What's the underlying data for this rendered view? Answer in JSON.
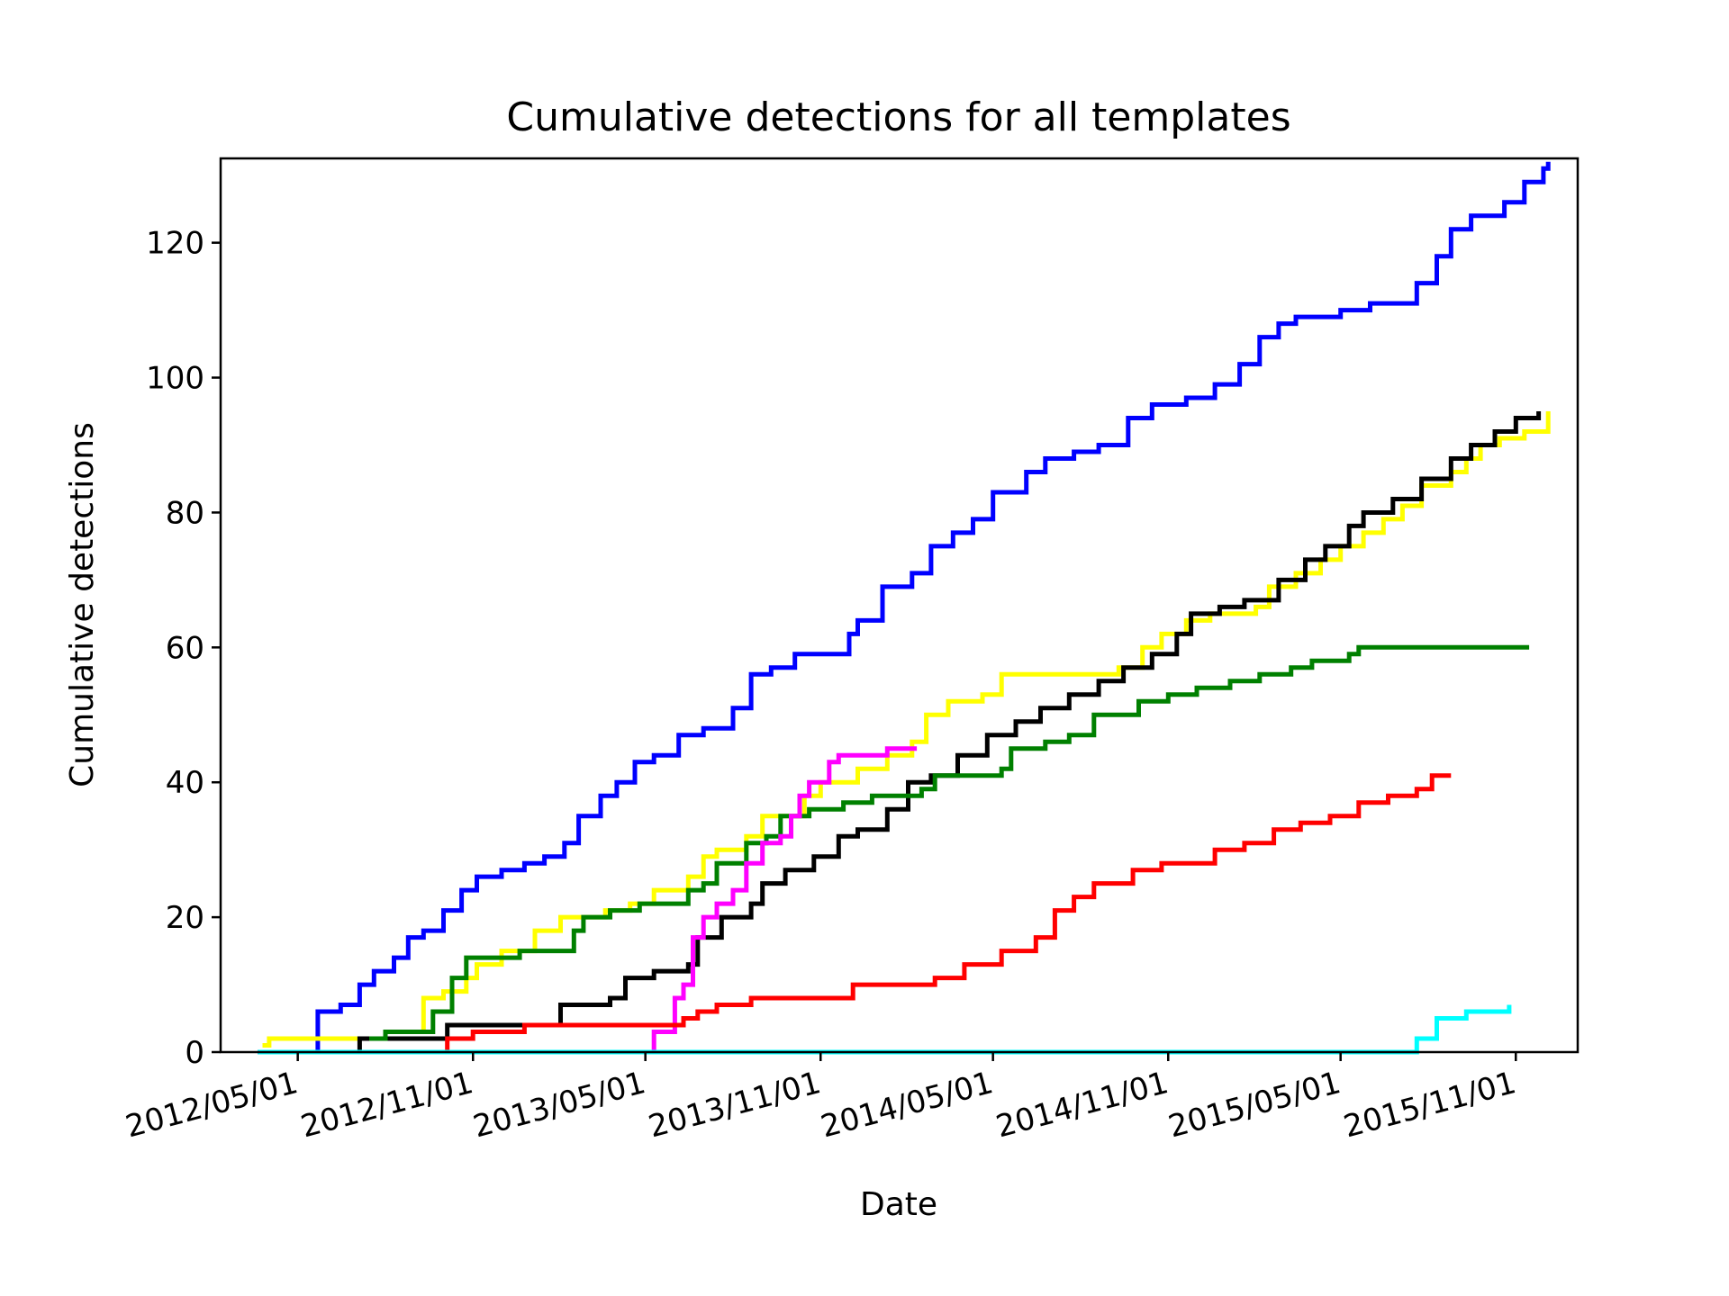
{
  "chart_data": {
    "type": "line",
    "title": "Cumulative detections for all templates",
    "xlabel": "Date",
    "ylabel": "Cumulative detections",
    "xlim": [
      "2012-02-10",
      "2016-01-05"
    ],
    "ylim": [
      0,
      132.5
    ],
    "x_ticks": [
      "2012/05/01",
      "2012/11/01",
      "2013/05/01",
      "2013/11/01",
      "2014/05/01",
      "2014/11/01",
      "2015/05/01",
      "2015/11/01"
    ],
    "y_ticks": [
      0,
      20,
      40,
      60,
      80,
      100,
      120
    ],
    "grid": false,
    "legend": "none",
    "series": [
      {
        "color": "#0000ff",
        "points": [
          [
            "2012-05-15",
            0
          ],
          [
            "2012-05-22",
            6
          ],
          [
            "2012-06-15",
            7
          ],
          [
            "2012-07-05",
            10
          ],
          [
            "2012-07-20",
            12
          ],
          [
            "2012-08-10",
            14
          ],
          [
            "2012-08-25",
            17
          ],
          [
            "2012-09-10",
            18
          ],
          [
            "2012-10-01",
            21
          ],
          [
            "2012-10-20",
            24
          ],
          [
            "2012-11-05",
            26
          ],
          [
            "2012-12-01",
            27
          ],
          [
            "2012-12-25",
            28
          ],
          [
            "2013-01-15",
            29
          ],
          [
            "2013-02-05",
            31
          ],
          [
            "2013-02-20",
            35
          ],
          [
            "2013-03-15",
            38
          ],
          [
            "2013-04-01",
            40
          ],
          [
            "2013-04-20",
            43
          ],
          [
            "2013-05-10",
            44
          ],
          [
            "2013-06-05",
            47
          ],
          [
            "2013-07-01",
            48
          ],
          [
            "2013-08-01",
            51
          ],
          [
            "2013-08-20",
            56
          ],
          [
            "2013-09-10",
            57
          ],
          [
            "2013-10-05",
            59
          ],
          [
            "2013-12-01",
            62
          ],
          [
            "2013-12-10",
            64
          ],
          [
            "2014-01-05",
            69
          ],
          [
            "2014-02-05",
            71
          ],
          [
            "2014-02-25",
            75
          ],
          [
            "2014-03-20",
            77
          ],
          [
            "2014-04-10",
            79
          ],
          [
            "2014-05-01",
            83
          ],
          [
            "2014-06-05",
            86
          ],
          [
            "2014-06-25",
            88
          ],
          [
            "2014-07-25",
            89
          ],
          [
            "2014-08-20",
            90
          ],
          [
            "2014-09-20",
            94
          ],
          [
            "2014-10-15",
            96
          ],
          [
            "2014-11-20",
            97
          ],
          [
            "2014-12-20",
            99
          ],
          [
            "2015-01-15",
            102
          ],
          [
            "2015-02-05",
            106
          ],
          [
            "2015-02-25",
            108
          ],
          [
            "2015-03-15",
            109
          ],
          [
            "2015-05-01",
            110
          ],
          [
            "2015-06-01",
            111
          ],
          [
            "2015-07-20",
            114
          ],
          [
            "2015-08-10",
            118
          ],
          [
            "2015-08-25",
            122
          ],
          [
            "2015-09-15",
            124
          ],
          [
            "2015-10-20",
            126
          ],
          [
            "2015-11-10",
            129
          ],
          [
            "2015-11-30",
            131
          ],
          [
            "2015-12-05",
            132
          ]
        ]
      },
      {
        "color": "#ffff00",
        "points": [
          [
            "2012-03-25",
            1
          ],
          [
            "2012-04-01",
            2
          ],
          [
            "2012-07-01",
            2
          ],
          [
            "2012-08-01",
            3
          ],
          [
            "2012-09-10",
            8
          ],
          [
            "2012-10-01",
            9
          ],
          [
            "2012-10-25",
            11
          ],
          [
            "2012-11-05",
            13
          ],
          [
            "2012-12-01",
            15
          ],
          [
            "2013-01-05",
            18
          ],
          [
            "2013-02-01",
            20
          ],
          [
            "2013-03-20",
            21
          ],
          [
            "2013-04-15",
            22
          ],
          [
            "2013-05-10",
            24
          ],
          [
            "2013-06-15",
            26
          ],
          [
            "2013-07-01",
            29
          ],
          [
            "2013-07-15",
            30
          ],
          [
            "2013-08-15",
            32
          ],
          [
            "2013-09-01",
            35
          ],
          [
            "2013-10-15",
            38
          ],
          [
            "2013-11-01",
            40
          ],
          [
            "2013-12-10",
            42
          ],
          [
            "2014-01-10",
            44
          ],
          [
            "2014-02-05",
            46
          ],
          [
            "2014-02-20",
            50
          ],
          [
            "2014-03-15",
            52
          ],
          [
            "2014-04-20",
            53
          ],
          [
            "2014-05-10",
            56
          ],
          [
            "2014-09-10",
            57
          ],
          [
            "2014-10-05",
            60
          ],
          [
            "2014-10-25",
            62
          ],
          [
            "2014-11-20",
            64
          ],
          [
            "2014-12-15",
            65
          ],
          [
            "2015-02-01",
            66
          ],
          [
            "2015-02-15",
            69
          ],
          [
            "2015-03-15",
            71
          ],
          [
            "2015-04-10",
            73
          ],
          [
            "2015-05-01",
            75
          ],
          [
            "2015-05-25",
            77
          ],
          [
            "2015-06-15",
            79
          ],
          [
            "2015-07-05",
            81
          ],
          [
            "2015-07-25",
            84
          ],
          [
            "2015-08-25",
            86
          ],
          [
            "2015-09-10",
            88
          ],
          [
            "2015-09-25",
            90
          ],
          [
            "2015-10-15",
            91
          ],
          [
            "2015-11-10",
            92
          ],
          [
            "2015-12-05",
            95
          ]
        ]
      },
      {
        "color": "#000000",
        "points": [
          [
            "2012-03-20",
            0
          ],
          [
            "2012-06-15",
            0
          ],
          [
            "2012-07-05",
            2
          ],
          [
            "2012-09-25",
            2
          ],
          [
            "2012-10-05",
            4
          ],
          [
            "2013-01-25",
            4
          ],
          [
            "2013-02-01",
            7
          ],
          [
            "2013-03-25",
            8
          ],
          [
            "2013-04-10",
            11
          ],
          [
            "2013-05-10",
            12
          ],
          [
            "2013-06-15",
            13
          ],
          [
            "2013-06-25",
            17
          ],
          [
            "2013-07-20",
            20
          ],
          [
            "2013-08-20",
            22
          ],
          [
            "2013-09-01",
            25
          ],
          [
            "2013-09-25",
            27
          ],
          [
            "2013-10-25",
            29
          ],
          [
            "2013-11-20",
            32
          ],
          [
            "2013-12-10",
            33
          ],
          [
            "2014-01-10",
            36
          ],
          [
            "2014-02-01",
            40
          ],
          [
            "2014-02-25",
            41
          ],
          [
            "2014-03-25",
            44
          ],
          [
            "2014-04-25",
            47
          ],
          [
            "2014-05-25",
            49
          ],
          [
            "2014-06-20",
            51
          ],
          [
            "2014-07-20",
            53
          ],
          [
            "2014-08-20",
            55
          ],
          [
            "2014-09-15",
            57
          ],
          [
            "2014-10-15",
            59
          ],
          [
            "2014-11-10",
            62
          ],
          [
            "2014-11-25",
            65
          ],
          [
            "2014-12-25",
            66
          ],
          [
            "2015-01-20",
            67
          ],
          [
            "2015-02-25",
            70
          ],
          [
            "2015-03-25",
            73
          ],
          [
            "2015-04-15",
            75
          ],
          [
            "2015-05-10",
            78
          ],
          [
            "2015-05-25",
            80
          ],
          [
            "2015-06-25",
            82
          ],
          [
            "2015-07-25",
            85
          ],
          [
            "2015-08-25",
            88
          ],
          [
            "2015-09-15",
            90
          ],
          [
            "2015-10-10",
            92
          ],
          [
            "2015-11-01",
            94
          ],
          [
            "2015-11-25",
            95
          ]
        ]
      },
      {
        "color": "#008000",
        "points": [
          [
            "2012-07-15",
            2
          ],
          [
            "2012-08-01",
            3
          ],
          [
            "2012-09-20",
            6
          ],
          [
            "2012-10-10",
            11
          ],
          [
            "2012-10-25",
            14
          ],
          [
            "2012-12-20",
            15
          ],
          [
            "2013-02-15",
            18
          ],
          [
            "2013-02-25",
            20
          ],
          [
            "2013-03-25",
            21
          ],
          [
            "2013-04-25",
            22
          ],
          [
            "2013-06-15",
            24
          ],
          [
            "2013-07-01",
            25
          ],
          [
            "2013-07-15",
            28
          ],
          [
            "2013-08-15",
            31
          ],
          [
            "2013-09-05",
            32
          ],
          [
            "2013-09-20",
            35
          ],
          [
            "2013-10-20",
            36
          ],
          [
            "2013-11-25",
            37
          ],
          [
            "2013-12-25",
            38
          ],
          [
            "2014-02-15",
            39
          ],
          [
            "2014-03-01",
            41
          ],
          [
            "2014-05-10",
            42
          ],
          [
            "2014-05-20",
            45
          ],
          [
            "2014-06-25",
            46
          ],
          [
            "2014-07-20",
            47
          ],
          [
            "2014-08-15",
            50
          ],
          [
            "2014-10-01",
            52
          ],
          [
            "2014-11-01",
            53
          ],
          [
            "2014-12-01",
            54
          ],
          [
            "2015-01-05",
            55
          ],
          [
            "2015-02-05",
            56
          ],
          [
            "2015-03-10",
            57
          ],
          [
            "2015-04-01",
            58
          ],
          [
            "2015-05-10",
            59
          ],
          [
            "2015-05-20",
            60
          ],
          [
            "2015-11-15",
            60
          ]
        ]
      },
      {
        "color": "#ff00ff",
        "points": [
          [
            "2012-03-20",
            0
          ],
          [
            "2013-04-20",
            0
          ],
          [
            "2013-05-10",
            3
          ],
          [
            "2013-06-01",
            8
          ],
          [
            "2013-06-10",
            10
          ],
          [
            "2013-06-20",
            17
          ],
          [
            "2013-07-01",
            20
          ],
          [
            "2013-07-15",
            22
          ],
          [
            "2013-08-01",
            24
          ],
          [
            "2013-08-15",
            28
          ],
          [
            "2013-09-01",
            31
          ],
          [
            "2013-09-20",
            32
          ],
          [
            "2013-10-01",
            35
          ],
          [
            "2013-10-10",
            38
          ],
          [
            "2013-10-20",
            40
          ],
          [
            "2013-11-10",
            43
          ],
          [
            "2013-11-20",
            44
          ],
          [
            "2014-01-10",
            45
          ],
          [
            "2014-02-10",
            45
          ]
        ]
      },
      {
        "color": "#ff0000",
        "points": [
          [
            "2012-03-25",
            0
          ],
          [
            "2012-09-25",
            0
          ],
          [
            "2012-10-05",
            2
          ],
          [
            "2012-11-01",
            3
          ],
          [
            "2012-12-25",
            4
          ],
          [
            "2013-05-15",
            4
          ],
          [
            "2013-06-10",
            5
          ],
          [
            "2013-06-25",
            6
          ],
          [
            "2013-07-15",
            7
          ],
          [
            "2013-08-20",
            8
          ],
          [
            "2013-12-05",
            10
          ],
          [
            "2014-03-01",
            11
          ],
          [
            "2014-04-01",
            13
          ],
          [
            "2014-05-10",
            15
          ],
          [
            "2014-06-15",
            17
          ],
          [
            "2014-07-05",
            21
          ],
          [
            "2014-07-25",
            23
          ],
          [
            "2014-08-15",
            25
          ],
          [
            "2014-09-25",
            27
          ],
          [
            "2014-10-25",
            28
          ],
          [
            "2014-12-20",
            30
          ],
          [
            "2015-01-20",
            31
          ],
          [
            "2015-02-20",
            33
          ],
          [
            "2015-03-20",
            34
          ],
          [
            "2015-04-20",
            35
          ],
          [
            "2015-05-20",
            37
          ],
          [
            "2015-06-20",
            38
          ],
          [
            "2015-07-20",
            39
          ],
          [
            "2015-08-05",
            41
          ],
          [
            "2015-08-25",
            41
          ]
        ]
      },
      {
        "color": "#00ffff",
        "points": [
          [
            "2012-03-20",
            0
          ],
          [
            "2015-07-10",
            0
          ],
          [
            "2015-07-20",
            2
          ],
          [
            "2015-08-10",
            5
          ],
          [
            "2015-09-10",
            6
          ],
          [
            "2015-10-20",
            6
          ],
          [
            "2015-10-25",
            7
          ]
        ]
      }
    ]
  }
}
